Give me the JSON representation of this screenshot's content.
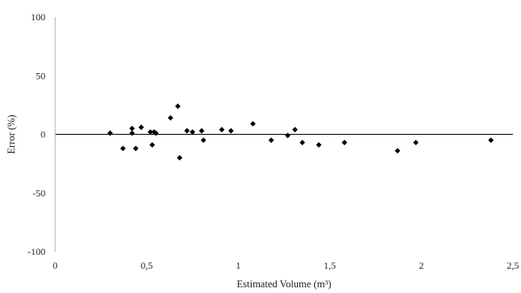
{
  "chart_data": {
    "type": "scatter",
    "title": "",
    "xlabel": "Estimated Volume (m³)",
    "ylabel": "Error (%)",
    "xlim": [
      0,
      2.5
    ],
    "ylim": [
      -100,
      100
    ],
    "x_ticks": [
      0,
      0.5,
      1,
      1.5,
      2,
      2.5
    ],
    "x_tick_labels": [
      "0",
      "0,5",
      "1",
      "1,5",
      "2",
      "2,5"
    ],
    "y_ticks": [
      100,
      50,
      0,
      -50,
      -100
    ],
    "y_tick_labels": [
      "100",
      "50",
      "0",
      "-50",
      "-100"
    ],
    "grid": false,
    "legend": "none",
    "marker": "diamond",
    "marker_color": "#000000",
    "series": [
      {
        "points": [
          [
            0.3,
            1
          ],
          [
            0.37,
            -12
          ],
          [
            0.42,
            5
          ],
          [
            0.42,
            1
          ],
          [
            0.44,
            -12
          ],
          [
            0.47,
            6
          ],
          [
            0.52,
            2
          ],
          [
            0.53,
            -9
          ],
          [
            0.54,
            2
          ],
          [
            0.55,
            1
          ],
          [
            0.63,
            14
          ],
          [
            0.67,
            24
          ],
          [
            0.68,
            -20
          ],
          [
            0.72,
            3
          ],
          [
            0.75,
            2
          ],
          [
            0.8,
            3
          ],
          [
            0.81,
            -5
          ],
          [
            0.91,
            4
          ],
          [
            0.96,
            3
          ],
          [
            1.08,
            9
          ],
          [
            1.18,
            -5
          ],
          [
            1.27,
            -1
          ],
          [
            1.31,
            4
          ],
          [
            1.35,
            -7
          ],
          [
            1.44,
            -9
          ],
          [
            1.58,
            -7
          ],
          [
            1.87,
            -14
          ],
          [
            1.97,
            -7
          ],
          [
            2.38,
            -5
          ]
        ]
      }
    ]
  }
}
